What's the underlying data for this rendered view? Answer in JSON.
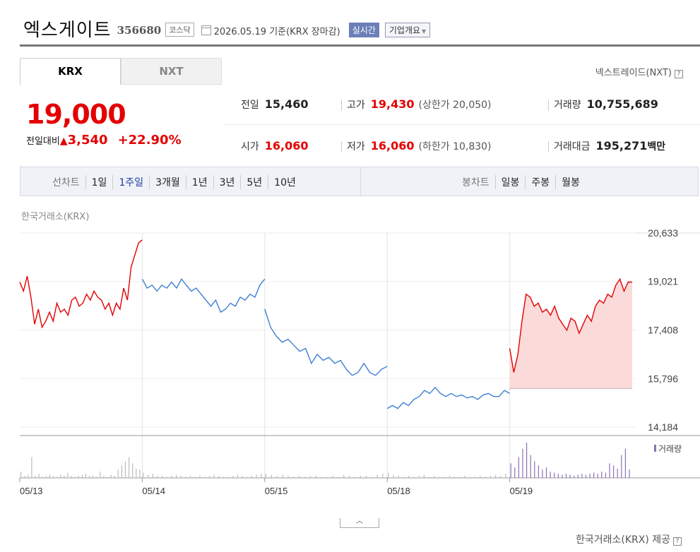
{
  "header": {
    "title": "엑스게이트",
    "code": "356680",
    "market": "코스닥",
    "date": "2026.05.19",
    "basis": "기준(KRX 장마감)",
    "realtime_btn": "실시간",
    "overview_btn": "기업개요"
  },
  "tabs": {
    "krx": "KRX",
    "nxt": "NXT"
  },
  "nxt_link": "넥스트레이드(NXT)",
  "help_glyph": "?",
  "quote": {
    "price": "19,000",
    "change_label": "전일대비",
    "change_value": "3,540",
    "change_pct": "+22.90%"
  },
  "stats": {
    "prev": {
      "label": "전일",
      "value": "15,460"
    },
    "high": {
      "label": "고가",
      "value": "19,430",
      "sub": "(상한가 20,050)"
    },
    "volume": {
      "label": "거래량",
      "value": "10,755,689"
    },
    "open": {
      "label": "시가",
      "value": "16,060"
    },
    "low": {
      "label": "저가",
      "value": "16,060",
      "sub": "(하한가 10,830)"
    },
    "amount": {
      "label": "거래대금",
      "value": "195,271",
      "unit": "백만"
    }
  },
  "chart_controls": {
    "line_label": "선차트",
    "periods": [
      "1일",
      "1주일",
      "3개월",
      "1년",
      "3년",
      "5년",
      "10년"
    ],
    "selected": "1주일",
    "candle_label": "봉차트",
    "candles": [
      "일봉",
      "주봉",
      "월봉"
    ]
  },
  "exchange_label": "한국거래소(KRX)",
  "provider": "한국거래소(KRX) 제공",
  "colors": {
    "up": "#e30000",
    "down": "#3d7fd1",
    "up_fill": "#fbdada",
    "volume": "#bbbbbb",
    "volume_up": "#8a72b5"
  },
  "chart_data": {
    "type": "line",
    "title": "",
    "ylabel": "",
    "y_ticks": [
      20633,
      19021,
      17408,
      15796,
      14184
    ],
    "ylim": [
      14184,
      20633
    ],
    "x_labels": [
      "05/13",
      "05/14",
      "05/15",
      "05/18",
      "05/19"
    ],
    "volume_legend": "거래량",
    "prev_close_ref": 15460,
    "days": [
      {
        "date": "05/13",
        "color": "up",
        "values": [
          19000,
          18700,
          19200,
          18500,
          17600,
          18100,
          17500,
          17700,
          18000,
          17700,
          18300,
          18000,
          18100,
          17900,
          18400,
          18500,
          18200,
          18300,
          18600,
          18400,
          18700,
          18500,
          18400,
          18100,
          18300,
          17900,
          18300,
          18100,
          18800,
          18400,
          19500,
          19900,
          20300,
          20400
        ]
      },
      {
        "date": "05/14",
        "color": "down",
        "values": [
          19100,
          18800,
          18900,
          18700,
          18900,
          18800,
          19000,
          18800,
          19100,
          18900,
          18700,
          18800,
          18600,
          18400,
          18200,
          18400,
          18000,
          18100,
          18300,
          18200,
          18500,
          18400,
          18600,
          18500,
          18900,
          19100
        ]
      },
      {
        "date": "05/15",
        "color": "down",
        "values": [
          18100,
          17500,
          17200,
          17000,
          17100,
          16900,
          16700,
          16800,
          16300,
          16600,
          16400,
          16500,
          16300,
          16400,
          16100,
          15900,
          16000,
          16300,
          16000,
          15900,
          16100,
          16200
        ]
      },
      {
        "date": "05/18",
        "color": "down",
        "values": [
          14800,
          14900,
          14800,
          15000,
          14900,
          15100,
          15200,
          15400,
          15300,
          15500,
          15300,
          15200,
          15300,
          15200,
          15250,
          15150,
          15200,
          15100,
          15250,
          15300,
          15200,
          15200,
          15400,
          15300
        ]
      },
      {
        "date": "05/19",
        "color": "up",
        "values": [
          16800,
          16000,
          16600,
          17700,
          18600,
          18500,
          18200,
          18300,
          18000,
          18100,
          17900,
          18200,
          17800,
          17600,
          17400,
          17800,
          17700,
          17300,
          17600,
          17900,
          17700,
          18200,
          18400,
          18300,
          18600,
          18500,
          18900,
          19100,
          18700,
          19000,
          19000
        ]
      }
    ],
    "volumes": [
      [
        6,
        2,
        3,
        20,
        2,
        4,
        1,
        2,
        3,
        2,
        1,
        3,
        2,
        5,
        2,
        1,
        2,
        3,
        4,
        2,
        2,
        1,
        6,
        2,
        1,
        3,
        2,
        8,
        12,
        16,
        20,
        14,
        9,
        8
      ],
      [
        5,
        3,
        4,
        2,
        2,
        1,
        2,
        3,
        2,
        1,
        2,
        1,
        2,
        1,
        2,
        3,
        2,
        1,
        1,
        2,
        3,
        2,
        1,
        2,
        3,
        4
      ],
      [
        4,
        3,
        2,
        3,
        2,
        1,
        2,
        1,
        2,
        2,
        1,
        1,
        2,
        1,
        3,
        2,
        1,
        2,
        2,
        1,
        3,
        4
      ],
      [
        5,
        3,
        2,
        1,
        2,
        1,
        2,
        3,
        1,
        2,
        1,
        1,
        2,
        1,
        1,
        2,
        1,
        1,
        2,
        1,
        2,
        3,
        2,
        4
      ],
      [
        14,
        10,
        20,
        28,
        34,
        22,
        16,
        12,
        8,
        10,
        6,
        5,
        4,
        3,
        4,
        3,
        2,
        3,
        4,
        3,
        4,
        5,
        4,
        6,
        5,
        14,
        12,
        9,
        22,
        28,
        8
      ]
    ]
  }
}
